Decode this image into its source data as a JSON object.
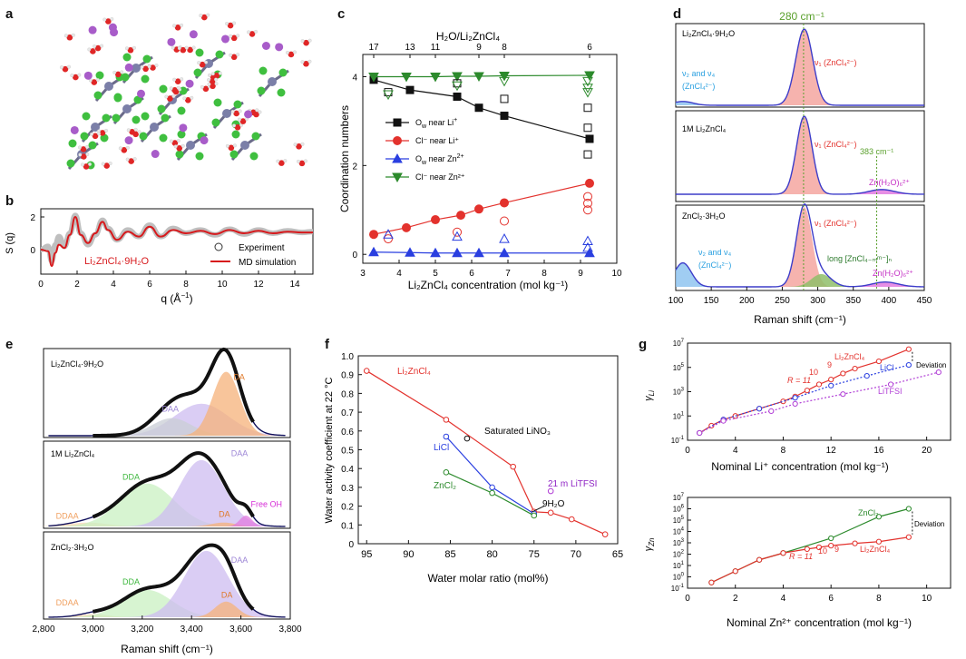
{
  "figure": {
    "panel_letters": [
      "a",
      "b",
      "c",
      "d",
      "e",
      "f",
      "g"
    ],
    "colors": {
      "li_zncl4": "#e3322d",
      "zncl2": "#2c8a2c",
      "licl": "#2a3fe0",
      "litfsi": "#b13fd6",
      "black": "#111111",
      "purple_fit": "#3d3dc9",
      "salmon": "#f4a6a0",
      "blue_fill": "#8fc4f0",
      "green_fill": "#8fbe6a",
      "magenta_fill": "#e27ae0",
      "orange_fill": "#f6b27a",
      "lavender_fill": "#cdbcf0",
      "lightgreen_fill": "#c9f0c2",
      "grey_fill": "#c9ced6",
      "peach_fill": "#f9d6b3"
    }
  },
  "chart_data": [
    {
      "panel": "a",
      "type": "other",
      "description_items": [
        "molecular snapshot"
      ]
    },
    {
      "panel": "b",
      "type": "line",
      "ylabel": "S (q)",
      "xlabel": "q (Å⁻¹)",
      "xlim": [
        0,
        15
      ],
      "ylim": [
        -1.5,
        2.5
      ],
      "xticks": [
        "0",
        "2",
        "4",
        "6",
        "8",
        "10",
        "12",
        "14"
      ],
      "yticks": [
        "0",
        "2"
      ],
      "inset_label": "Li2ZnCl4·9H2O",
      "legend": [
        "Experiment",
        "MD simulation"
      ],
      "series": [
        {
          "name": "Experiment",
          "style": "grey band",
          "x": [
            0,
            0.4,
            0.6,
            0.8,
            1.0,
            1.3,
            1.6,
            1.9,
            2.2,
            2.6,
            3.0,
            3.4,
            3.7,
            4.2,
            4.8,
            5.4,
            6.0,
            6.6,
            7.3,
            8.0,
            8.8,
            9.6,
            10.4,
            11.2,
            12.0,
            12.8,
            13.6,
            14.4,
            15.0
          ],
          "y": [
            0,
            0.2,
            -0.7,
            0.3,
            0.8,
            0.2,
            1.0,
            2.1,
            1.0,
            0.3,
            0.9,
            1.8,
            1.3,
            0.6,
            1.2,
            0.8,
            1.5,
            0.8,
            1.3,
            1.0,
            1.2,
            0.9,
            1.25,
            0.95,
            1.2,
            1.0,
            1.15,
            1.05,
            1.1
          ]
        },
        {
          "name": "MD simulation",
          "x": [
            0,
            0.4,
            0.6,
            0.8,
            1.0,
            1.3,
            1.6,
            1.9,
            2.2,
            2.6,
            3.0,
            3.4,
            3.7,
            4.2,
            4.8,
            5.4,
            6.0,
            6.6,
            7.3,
            8.0,
            8.8,
            9.6,
            10.4,
            11.2,
            12.0,
            12.8,
            13.6,
            14.4,
            15.0
          ],
          "y": [
            0,
            -0.1,
            -1.0,
            -0.2,
            0.3,
            0.1,
            0.9,
            2.0,
            0.9,
            0.4,
            1.0,
            1.7,
            1.2,
            0.6,
            1.1,
            0.8,
            1.4,
            0.8,
            1.2,
            1.0,
            1.15,
            0.95,
            1.2,
            1.0,
            1.15,
            1.0,
            1.1,
            1.05,
            1.05
          ]
        }
      ]
    },
    {
      "panel": "c",
      "type": "scatter",
      "title": "H2O/Li2ZnCl4",
      "top_ticks": [
        "17",
        "13",
        "11",
        "9",
        "8",
        "6"
      ],
      "xlabel": "Li2ZnCl4 concentration (mol kg⁻¹)",
      "ylabel": "Coordination numbers",
      "xlim": [
        3,
        10
      ],
      "ylim": [
        -0.2,
        4.5
      ],
      "xticks": [
        "3",
        "4",
        "5",
        "6",
        "7",
        "8",
        "9",
        "10"
      ],
      "yticks": [
        "0",
        "2",
        "4"
      ],
      "legend": [
        "Ow near Li+",
        "Cl− near Li+",
        "Ow near Zn2+",
        "Cl− near Zn2+"
      ],
      "series": [
        {
          "name": "Ow near Li+",
          "x": [
            3.3,
            4.3,
            5.6,
            6.2,
            6.9,
            9.25
          ],
          "y": [
            3.93,
            3.7,
            3.55,
            3.3,
            3.12,
            2.6
          ]
        },
        {
          "name": "Cl− near Li+",
          "x": [
            3.3,
            4.2,
            5.0,
            5.7,
            6.2,
            6.9,
            9.25
          ],
          "y": [
            0.45,
            0.6,
            0.78,
            0.88,
            1.02,
            1.16,
            1.6
          ]
        },
        {
          "name": "Ow near Zn2+",
          "x": [
            3.3,
            4.3,
            5.0,
            5.6,
            6.2,
            6.9,
            9.25
          ],
          "y": [
            0.05,
            0.04,
            0.03,
            0.03,
            0.03,
            0.03,
            0.03
          ]
        },
        {
          "name": "Cl− near Zn2+",
          "x": [
            3.3,
            4.2,
            5.0,
            5.6,
            6.2,
            6.9,
            9.25
          ],
          "y": [
            4.0,
            4.0,
            4.0,
            4.01,
            4.01,
            4.02,
            4.03
          ]
        }
      ]
    },
    {
      "panel": "d",
      "type": "area",
      "top_label": "280 cm⁻¹",
      "xlabel": "Raman shift (cm⁻¹)",
      "xlim": [
        100,
        450
      ],
      "xticks": [
        "100",
        "150",
        "200",
        "250",
        "300",
        "350",
        "400",
        "450"
      ],
      "subpanels": [
        {
          "label": "Li2ZnCl4·9H2O",
          "annotations": [
            "ν1 (ZnCl4 2−)",
            "ν2 and ν4",
            "(ZnCl4 2−)"
          ]
        },
        {
          "label": "1M Li2ZnCl4",
          "annotations": [
            "ν1 (ZnCl4 2−)",
            "383 cm⁻¹",
            "Zn(H2O)6 2+"
          ]
        },
        {
          "label": "ZnCl2·3H2O",
          "annotations": [
            "ν1 (ZnCl4 2−)",
            "ν2 and ν4",
            "(ZnCl4 2−)",
            "long [ZnCl4-m m−]n",
            "Zn(H2O)6 2+"
          ]
        }
      ]
    },
    {
      "panel": "e",
      "type": "area",
      "xlabel": "Raman shift (cm⁻¹)",
      "xlim": [
        2800,
        3800
      ],
      "xticks": [
        "2,800",
        "3,000",
        "3,200",
        "3,400",
        "3,600",
        "3,800"
      ],
      "subpanels": [
        {
          "label": "Li2ZnCl4·9H2O",
          "components": [
            "DAA",
            "DA"
          ]
        },
        {
          "label": "1M Li2ZnCl4",
          "components": [
            "DDAA",
            "DDA",
            "DAA",
            "DA",
            "Free OH"
          ]
        },
        {
          "label": "ZnCl2·3H2O",
          "components": [
            "DDAA",
            "DDA",
            "DAA",
            "DA"
          ]
        }
      ]
    },
    {
      "panel": "f",
      "type": "line",
      "xlabel": "Water molar ratio (mol%)",
      "ylabel": "Water activity coefficient at 22 °C",
      "xlim": [
        96,
        65
      ],
      "ylim": [
        0,
        1.0
      ],
      "xticks": [
        "95",
        "90",
        "85",
        "80",
        "75",
        "70",
        "65"
      ],
      "yticks": [
        "0",
        "0.1",
        "0.2",
        "0.3",
        "0.4",
        "0.5",
        "0.6",
        "0.7",
        "0.8",
        "0.9",
        "1.0"
      ],
      "annotations": [
        "Saturated LiNO3",
        "21 m LiTFSI",
        "9H2O"
      ],
      "series": [
        {
          "name": "Li2ZnCl4",
          "x": [
            95,
            85.5,
            77.5,
            75,
            73,
            70.5,
            66.5
          ],
          "y": [
            0.92,
            0.66,
            0.41,
            0.17,
            0.165,
            0.13,
            0.05
          ]
        },
        {
          "name": "LiCl",
          "x": [
            85.5,
            80,
            75
          ],
          "y": [
            0.57,
            0.3,
            0.16
          ]
        },
        {
          "name": "ZnCl2",
          "x": [
            85.5,
            80,
            75
          ],
          "y": [
            0.38,
            0.27,
            0.15
          ]
        },
        {
          "name": "Saturated LiNO3",
          "x": [
            83
          ],
          "y": [
            0.56
          ]
        },
        {
          "name": "21 m LiTFSI",
          "x": [
            73
          ],
          "y": [
            0.28
          ]
        }
      ]
    },
    {
      "panel": "g",
      "type": "line",
      "subplots": [
        {
          "ylabel": "γLi",
          "xlabel": "Nominal Li⁺ concentration (mol kg⁻¹)",
          "xlim": [
            0,
            22
          ],
          "ylim_log10": [
            -1,
            7
          ],
          "xticks": [
            "0",
            "4",
            "8",
            "12",
            "16",
            "20"
          ],
          "yticks": [
            "10−1",
            "101",
            "103",
            "105",
            "107"
          ],
          "annotations": [
            "R = 11",
            "10",
            "9",
            "Deviation"
          ],
          "series": [
            {
              "name": "Li2ZnCl4",
              "x": [
                1,
                2,
                3,
                4,
                6,
                8,
                9,
                10,
                11,
                12,
                13,
                14,
                16,
                18.5
              ],
              "y_log10": [
                -0.4,
                0.2,
                0.7,
                1.0,
                1.6,
                2.2,
                2.6,
                3.1,
                3.6,
                4.0,
                4.5,
                4.9,
                5.5,
                6.5
              ]
            },
            {
              "name": "LiCl",
              "x": [
                1,
                3,
                6,
                9,
                12,
                15,
                18.5
              ],
              "y_log10": [
                -0.4,
                0.7,
                1.6,
                2.5,
                3.5,
                4.3,
                5.2
              ]
            },
            {
              "name": "LiTFSI",
              "x": [
                1,
                3,
                7,
                9,
                13,
                17,
                21
              ],
              "y_log10": [
                -0.4,
                0.6,
                1.4,
                2.0,
                2.8,
                3.6,
                4.6
              ]
            }
          ]
        },
        {
          "ylabel": "γZn",
          "xlabel": "Nominal Zn²⁺ concentration (mol kg⁻¹)",
          "xlim": [
            0,
            11
          ],
          "ylim_log10": [
            -1,
            7
          ],
          "xticks": [
            "0",
            "2",
            "4",
            "6",
            "8",
            "10"
          ],
          "yticks": [
            "10−1",
            "100",
            "101",
            "102",
            "103",
            "104",
            "105",
            "106",
            "107"
          ],
          "annotations": [
            "R = 11",
            "10",
            "9",
            "Deviation"
          ],
          "series": [
            {
              "name": "ZnCl2",
              "x": [
                1,
                2,
                3,
                4,
                6,
                8,
                9.25
              ],
              "y_log10": [
                -0.5,
                0.5,
                1.5,
                2.1,
                3.4,
                5.3,
                6.0
              ]
            },
            {
              "name": "Li2ZnCl4",
              "x": [
                1,
                2,
                3,
                4,
                5,
                5.5,
                6,
                7,
                8,
                9.25
              ],
              "y_log10": [
                -0.5,
                0.5,
                1.5,
                2.1,
                2.45,
                2.6,
                2.75,
                2.95,
                3.1,
                3.5
              ]
            }
          ]
        }
      ]
    }
  ],
  "labels": {
    "b_legend_exp": "Experiment",
    "b_legend_md": "MD simulation",
    "b_sample": "Li₂ZnCl₄·9H₂O",
    "c_top_title": "H₂O/Li₂ZnCl₄",
    "c_xlabel": "Li₂ZnCl₄ concentration (mol kg⁻¹)",
    "c_ylabel": "Coordination numbers",
    "c_leg1": "O",
    "c_leg2": "Cl⁻ near Li⁺",
    "c_leg3": "O",
    "c_leg4": "Cl⁻ near Zn²⁺",
    "d_top": "280 cm⁻¹",
    "d_xlabel": "Raman shift (cm⁻¹)",
    "d_s1": "Li₂ZnCl₄·9H₂O",
    "d_s2": "1M Li₂ZnCl₄",
    "d_s3": "ZnCl₂·3H₂O",
    "d_v1": "ν₁ (ZnCl₄²⁻)",
    "d_v24a": "ν₂ and ν₄",
    "d_v24b": "(ZnCl₄²⁻)",
    "d_383": "383 cm⁻¹",
    "d_znh2o": "Zn(H₂O)₆²⁺",
    "d_long": "long [ZnCl₄₋ₘᵐ⁻]ₙ",
    "e_xlabel": "Raman shift (cm⁻¹)",
    "e_s1": "Li₂ZnCl₄·9H₂O",
    "e_s2": "1M Li₂ZnCl₄",
    "e_s3": "ZnCl₂·3H₂O",
    "f_xlabel": "Water molar ratio (mol%)",
    "f_ylabel": "Water activity coefficient at 22 °C",
    "f_li2zncl4": "Li₂ZnCl₄",
    "f_licl": "LiCl",
    "f_zncl2": "ZnCl₂",
    "f_lino3": "Saturated LiNO₃",
    "f_litfsi": "21 m LiTFSI",
    "f_9h2o": "9H₂O",
    "g_top_ylabel": "γLi",
    "g_top_xlabel": "Nominal Li⁺ concentration (mol kg⁻¹)",
    "g_top_li2zncl4": "Li₂ZnCl₄",
    "g_top_licl": "LiCl",
    "g_top_litfsi": "LiTFSI",
    "g_bot_ylabel": "γZn",
    "g_bot_xlabel": "Nominal Zn²⁺ concentration (mol kg⁻¹)",
    "g_bot_zncl2": "ZnCl₂",
    "g_bot_li2zncl4": "Li₂ZnCl₄",
    "g_R": "R = 11",
    "g_10": "10",
    "g_9": "9",
    "g_dev": "Deviation"
  }
}
